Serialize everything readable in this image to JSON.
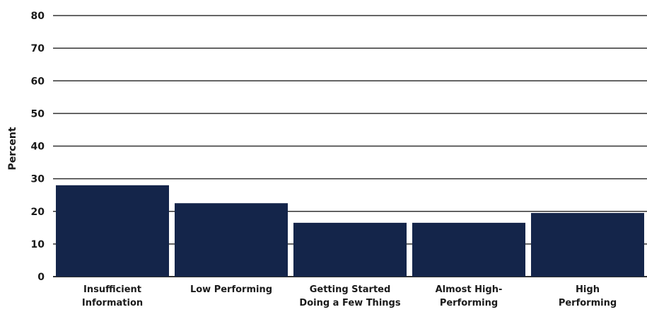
{
  "chart_data": {
    "type": "bar",
    "title": "",
    "xlabel": "",
    "ylabel": "Percent",
    "ylim": [
      0,
      80
    ],
    "yticks": [
      0,
      10,
      20,
      30,
      40,
      50,
      60,
      70,
      80
    ],
    "grid": true,
    "categories": [
      [
        "Insufficient",
        "Information"
      ],
      [
        "Low Performing"
      ],
      [
        "Getting Started",
        "Doing a Few Things"
      ],
      [
        "Almost High-",
        "Performing"
      ],
      [
        "High",
        "Performing"
      ]
    ],
    "values": [
      28,
      22.5,
      16.5,
      16.5,
      19.5
    ],
    "colors": {
      "bar": "#14254a",
      "grid": "#333333"
    }
  }
}
